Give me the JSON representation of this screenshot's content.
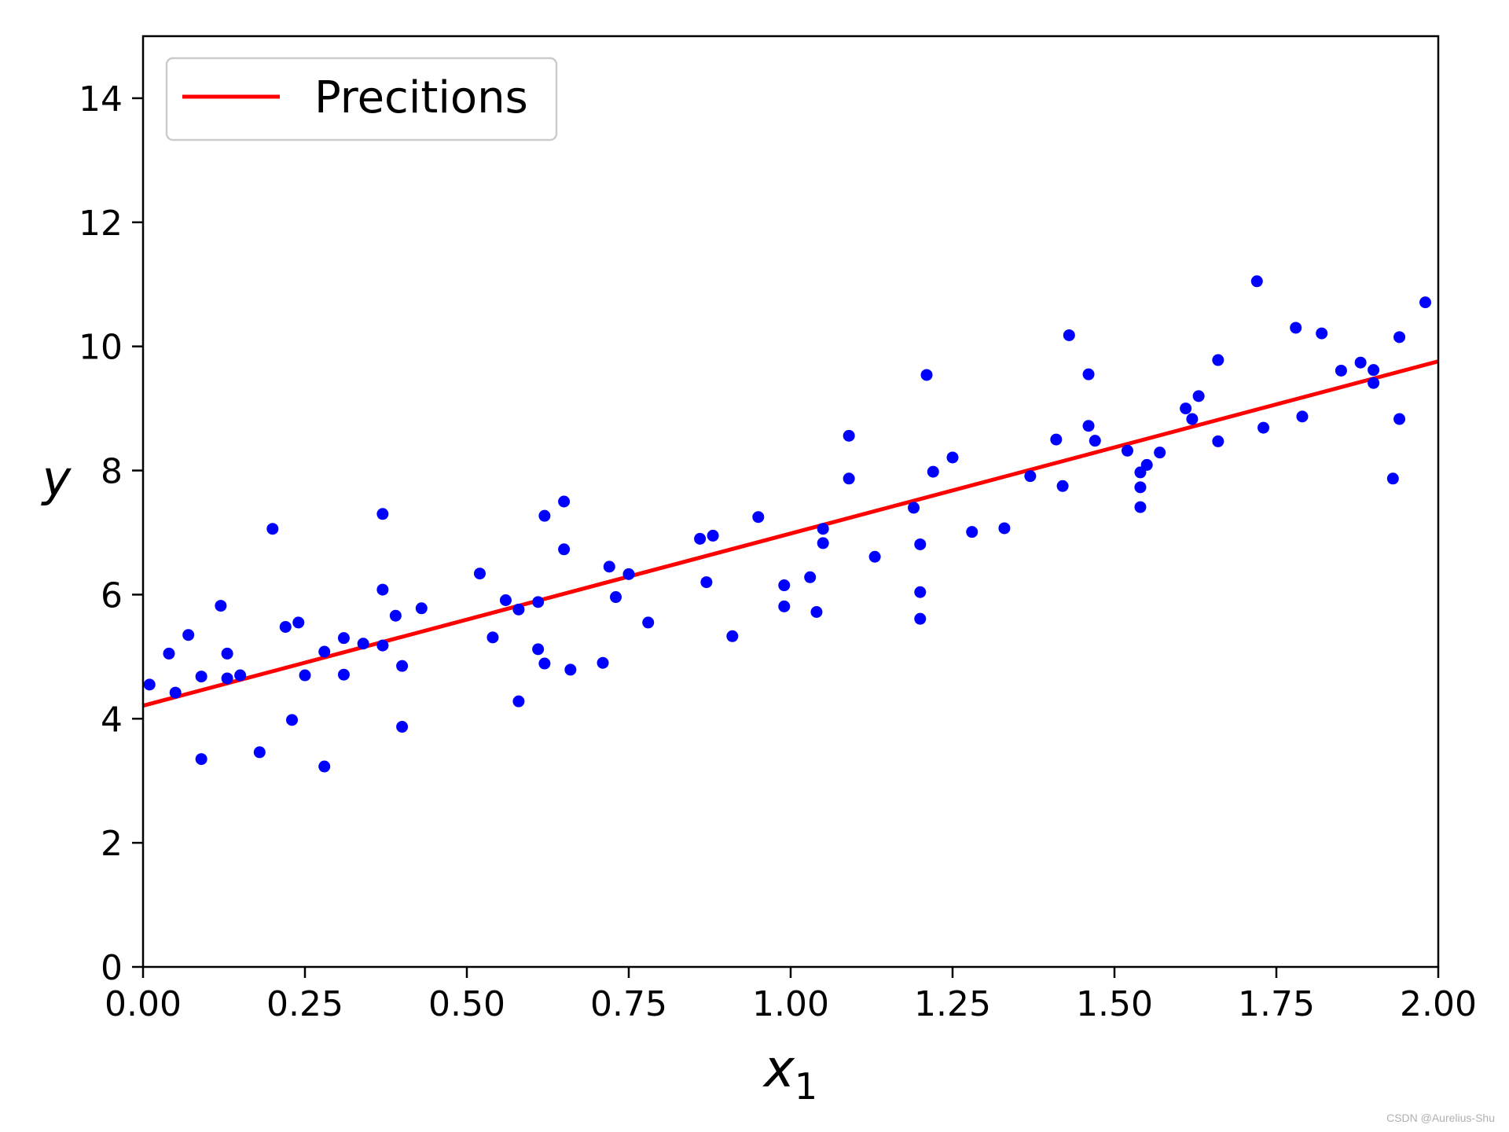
{
  "chart_data": {
    "type": "scatter",
    "xlim": [
      0,
      2
    ],
    "ylim": [
      0,
      15
    ],
    "xticks": [
      "0.00",
      "0.25",
      "0.50",
      "0.75",
      "1.00",
      "1.25",
      "1.50",
      "1.75",
      "2.00"
    ],
    "yticks": [
      "0",
      "2",
      "4",
      "6",
      "8",
      "10",
      "12",
      "14"
    ],
    "xlabel": "x1",
    "ylabel": "y",
    "grid": false,
    "legend_position": "top-left",
    "colors": {
      "points": "#0000ff",
      "line": "#ff0000",
      "frame": "#000000"
    },
    "series": [
      {
        "type": "scatter",
        "points": [
          [
            0.01,
            4.55
          ],
          [
            0.04,
            5.05
          ],
          [
            0.05,
            4.42
          ],
          [
            0.07,
            5.35
          ],
          [
            0.09,
            3.35
          ],
          [
            0.09,
            4.68
          ],
          [
            0.12,
            5.82
          ],
          [
            0.13,
            5.05
          ],
          [
            0.13,
            4.65
          ],
          [
            0.15,
            4.7
          ],
          [
            0.18,
            3.46
          ],
          [
            0.2,
            7.06
          ],
          [
            0.22,
            5.48
          ],
          [
            0.23,
            3.98
          ],
          [
            0.24,
            5.55
          ],
          [
            0.25,
            4.7
          ],
          [
            0.28,
            5.08
          ],
          [
            0.28,
            3.23
          ],
          [
            0.31,
            5.3
          ],
          [
            0.31,
            4.71
          ],
          [
            0.34,
            5.21
          ],
          [
            0.37,
            5.18
          ],
          [
            0.37,
            6.08
          ],
          [
            0.37,
            7.3
          ],
          [
            0.39,
            5.66
          ],
          [
            0.4,
            4.85
          ],
          [
            0.4,
            3.87
          ],
          [
            0.43,
            5.78
          ],
          [
            0.52,
            6.34
          ],
          [
            0.54,
            5.31
          ],
          [
            0.56,
            5.91
          ],
          [
            0.58,
            5.76
          ],
          [
            0.58,
            4.28
          ],
          [
            0.61,
            5.88
          ],
          [
            0.61,
            5.12
          ],
          [
            0.62,
            7.27
          ],
          [
            0.62,
            4.89
          ],
          [
            0.65,
            7.5
          ],
          [
            0.65,
            6.73
          ],
          [
            0.66,
            4.79
          ],
          [
            0.71,
            4.9
          ],
          [
            0.72,
            6.45
          ],
          [
            0.73,
            5.96
          ],
          [
            0.75,
            6.33
          ],
          [
            0.78,
            5.55
          ],
          [
            0.86,
            6.9
          ],
          [
            0.87,
            6.2
          ],
          [
            0.88,
            6.95
          ],
          [
            0.91,
            5.33
          ],
          [
            0.95,
            7.25
          ],
          [
            0.99,
            6.15
          ],
          [
            0.99,
            5.81
          ],
          [
            1.03,
            6.28
          ],
          [
            1.04,
            5.72
          ],
          [
            1.05,
            7.06
          ],
          [
            1.05,
            6.83
          ],
          [
            1.09,
            8.56
          ],
          [
            1.09,
            7.87
          ],
          [
            1.13,
            6.61
          ],
          [
            1.19,
            7.4
          ],
          [
            1.2,
            6.04
          ],
          [
            1.2,
            5.61
          ],
          [
            1.2,
            6.81
          ],
          [
            1.21,
            9.54
          ],
          [
            1.22,
            7.98
          ],
          [
            1.25,
            8.21
          ],
          [
            1.28,
            7.01
          ],
          [
            1.33,
            7.07
          ],
          [
            1.37,
            7.91
          ],
          [
            1.41,
            8.5
          ],
          [
            1.42,
            7.75
          ],
          [
            1.43,
            10.18
          ],
          [
            1.46,
            8.72
          ],
          [
            1.46,
            9.55
          ],
          [
            1.47,
            8.48
          ],
          [
            1.52,
            8.32
          ],
          [
            1.54,
            7.97
          ],
          [
            1.54,
            7.73
          ],
          [
            1.54,
            7.41
          ],
          [
            1.55,
            8.09
          ],
          [
            1.57,
            8.29
          ],
          [
            1.61,
            9.0
          ],
          [
            1.62,
            8.83
          ],
          [
            1.63,
            9.2
          ],
          [
            1.66,
            9.78
          ],
          [
            1.66,
            8.47
          ],
          [
            1.72,
            11.05
          ],
          [
            1.73,
            8.69
          ],
          [
            1.78,
            10.3
          ],
          [
            1.79,
            8.87
          ],
          [
            1.82,
            10.21
          ],
          [
            1.85,
            9.61
          ],
          [
            1.88,
            9.74
          ],
          [
            1.9,
            9.62
          ],
          [
            1.9,
            9.41
          ],
          [
            1.93,
            7.87
          ],
          [
            1.94,
            10.15
          ],
          [
            1.94,
            8.83
          ],
          [
            1.98,
            10.71
          ]
        ]
      },
      {
        "type": "line",
        "name": "Precitions",
        "points": [
          [
            0,
            4.21
          ],
          [
            2,
            9.76
          ]
        ]
      }
    ]
  },
  "watermark": "CSDN @Aurelius-Shu"
}
